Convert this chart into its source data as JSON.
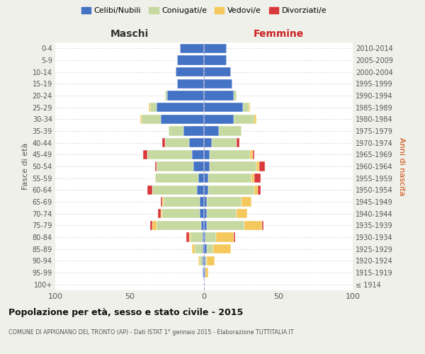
{
  "age_groups": [
    "100+",
    "95-99",
    "90-94",
    "85-89",
    "80-84",
    "75-79",
    "70-74",
    "65-69",
    "60-64",
    "55-59",
    "50-54",
    "45-49",
    "40-44",
    "35-39",
    "30-34",
    "25-29",
    "20-24",
    "15-19",
    "10-14",
    "5-9",
    "0-4"
  ],
  "birth_years": [
    "≤ 1914",
    "1915-1919",
    "1920-1924",
    "1925-1929",
    "1930-1934",
    "1935-1939",
    "1940-1944",
    "1945-1949",
    "1950-1954",
    "1955-1959",
    "1960-1964",
    "1965-1969",
    "1970-1974",
    "1975-1979",
    "1980-1984",
    "1985-1989",
    "1990-1994",
    "1995-1999",
    "2000-2004",
    "2005-2009",
    "2010-2014"
  ],
  "maschi": {
    "celibi": [
      0,
      1,
      1,
      1,
      1,
      2,
      3,
      3,
      5,
      4,
      7,
      8,
      10,
      14,
      29,
      32,
      25,
      18,
      19,
      18,
      16
    ],
    "coniugati": [
      0,
      0,
      2,
      5,
      8,
      30,
      25,
      24,
      30,
      29,
      25,
      30,
      16,
      10,
      13,
      4,
      1,
      0,
      0,
      0,
      0
    ],
    "vedovi": [
      0,
      0,
      1,
      2,
      1,
      3,
      1,
      1,
      0,
      0,
      0,
      0,
      0,
      0,
      1,
      1,
      0,
      0,
      0,
      0,
      0
    ],
    "divorziati": [
      0,
      0,
      0,
      0,
      2,
      1,
      2,
      1,
      3,
      0,
      1,
      3,
      2,
      0,
      0,
      0,
      0,
      0,
      0,
      0,
      0
    ]
  },
  "femmine": {
    "nubili": [
      0,
      1,
      1,
      2,
      1,
      2,
      2,
      2,
      3,
      3,
      4,
      4,
      5,
      10,
      20,
      26,
      20,
      19,
      18,
      15,
      15
    ],
    "coniugate": [
      0,
      0,
      1,
      4,
      7,
      25,
      20,
      23,
      31,
      29,
      31,
      27,
      17,
      15,
      14,
      4,
      2,
      0,
      0,
      0,
      0
    ],
    "vedove": [
      0,
      2,
      5,
      12,
      12,
      12,
      7,
      7,
      2,
      2,
      2,
      2,
      0,
      0,
      1,
      1,
      0,
      0,
      0,
      0,
      0
    ],
    "divorziate": [
      0,
      0,
      0,
      0,
      1,
      1,
      0,
      0,
      2,
      4,
      4,
      1,
      2,
      0,
      0,
      0,
      0,
      0,
      0,
      0,
      0
    ]
  },
  "colors": {
    "celibi": "#4472c4",
    "coniugati": "#c5d9a0",
    "vedovi": "#f5c85c",
    "divorziati": "#d9393b"
  },
  "legend_labels": [
    "Celibi/Nubili",
    "Coniugati/e",
    "Vedovi/e",
    "Divorziati/e"
  ],
  "title": "Popolazione per età, sesso e stato civile - 2015",
  "subtitle": "COMUNE DI APPIGNANO DEL TRONTO (AP) - Dati ISTAT 1° gennaio 2015 - Elaborazione TUTTITALIA.IT",
  "xlabel_left": "Maschi",
  "xlabel_right": "Femmine",
  "ylabel_left": "Fasce di età",
  "ylabel_right": "Anni di nascita",
  "xlim": 100,
  "background_color": "#f0f0eb",
  "plot_background": "#ffffff"
}
